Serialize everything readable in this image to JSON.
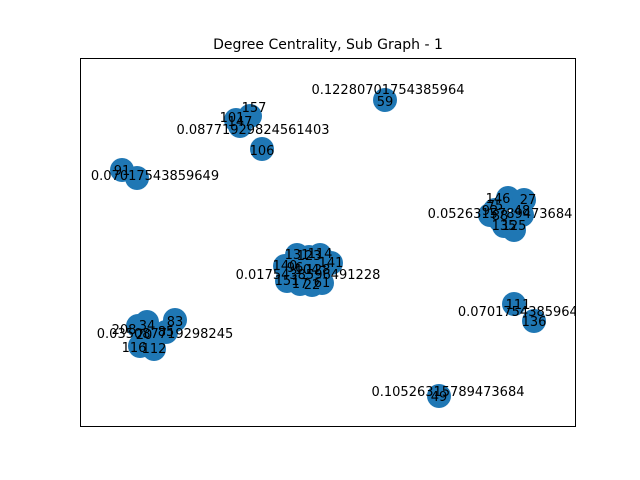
{
  "title": "Degree Centrality, Sub Graph - 1",
  "colors": {
    "node": "#1f77b4",
    "frame": "#000000",
    "background": "#ffffff"
  },
  "clusters": [
    {
      "id": "c59",
      "centrality_label": "0.12280701754385964",
      "nodes": [
        {
          "label": "59"
        }
      ]
    },
    {
      "id": "c106",
      "centrality_label": "0.08771929824561403",
      "nodes": [
        {
          "label": "101"
        },
        {
          "label": "157"
        },
        {
          "label": "147"
        },
        {
          "label": "106"
        }
      ]
    },
    {
      "id": "c91",
      "centrality_label": "0.07017543859649",
      "nodes": [
        {
          "label": "91"
        },
        {
          "label": ""
        }
      ]
    },
    {
      "id": "c146",
      "centrality_label": "0.0526315789473684",
      "nodes": [
        {
          "label": "146"
        },
        {
          "label": "27"
        },
        {
          "label": "75"
        },
        {
          "label": "48"
        },
        {
          "label": "135"
        },
        {
          "label": "125"
        },
        {
          "label": "88"
        },
        {
          "label": "92"
        }
      ]
    },
    {
      "id": "c_center",
      "centrality_label": "0.0175438596491228",
      "nodes": [
        {
          "label": "131"
        },
        {
          "label": "123"
        },
        {
          "label": "114"
        },
        {
          "label": "141"
        },
        {
          "label": "140"
        },
        {
          "label": "96"
        },
        {
          "label": "104"
        },
        {
          "label": "128"
        },
        {
          "label": "151"
        },
        {
          "label": "17"
        },
        {
          "label": "22"
        },
        {
          "label": "61"
        }
      ]
    },
    {
      "id": "c_left",
      "centrality_label": "0.035087719298245",
      "nodes": [
        {
          "label": "208"
        },
        {
          "label": "34"
        },
        {
          "label": "83"
        },
        {
          "label": "116"
        },
        {
          "label": "112"
        },
        {
          "label": "20"
        },
        {
          "label": "85"
        }
      ]
    },
    {
      "id": "c111",
      "centrality_label": "0.07017543859649",
      "nodes": [
        {
          "label": "111"
        },
        {
          "label": "136"
        }
      ]
    },
    {
      "id": "c49",
      "centrality_label": "0.10526315789473684",
      "nodes": [
        {
          "label": "49"
        }
      ]
    }
  ]
}
